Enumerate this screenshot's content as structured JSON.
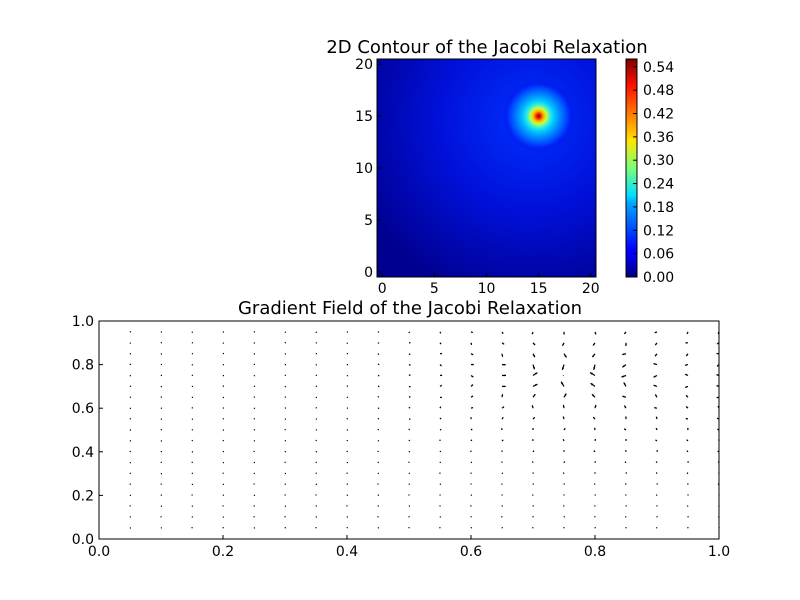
{
  "chart_data": [
    {
      "type": "heatmap",
      "title": "2D Contour of the Jacobi Relaxation",
      "xlabel": "",
      "ylabel": "",
      "xlim": [
        -0.5,
        20.5
      ],
      "ylim": [
        -0.5,
        20.5
      ],
      "xticks": [
        "0",
        "5",
        "10",
        "15",
        "20"
      ],
      "yticks": [
        "0",
        "5",
        "10",
        "15",
        "20"
      ],
      "peak": {
        "x": 15,
        "y": 15,
        "value": 0.56
      },
      "colormap": "jet",
      "colorbar": {
        "range": [
          0.0,
          0.56
        ],
        "ticks": [
          "0.00",
          "0.06",
          "0.12",
          "0.18",
          "0.24",
          "0.30",
          "0.36",
          "0.42",
          "0.48",
          "0.54"
        ]
      }
    },
    {
      "type": "quiver",
      "title": "Gradient Field of the Jacobi Relaxation",
      "xlabel": "",
      "ylabel": "",
      "xlim": [
        0.0,
        1.0
      ],
      "ylim": [
        0.0,
        1.0
      ],
      "xticks": [
        "0.0",
        "0.2",
        "0.4",
        "0.6",
        "0.8",
        "1.0"
      ],
      "yticks": [
        "0.0",
        "0.2",
        "0.4",
        "0.6",
        "0.8",
        "1.0"
      ],
      "grid_x": [
        0,
        0.05,
        0.1,
        0.15,
        0.2,
        0.25,
        0.3,
        0.35,
        0.4,
        0.45,
        0.5,
        0.55,
        0.6,
        0.65,
        0.7,
        0.75,
        0.8,
        0.85,
        0.9,
        0.95,
        1.0
      ],
      "grid_y": [
        0,
        0.05,
        0.1,
        0.15,
        0.2,
        0.25,
        0.3,
        0.35,
        0.4,
        0.45,
        0.5,
        0.55,
        0.6,
        0.65,
        0.7,
        0.75,
        0.8,
        0.85,
        0.9,
        0.95,
        1.0
      ],
      "vectors": "gradient of the relaxation field, large near (0.75, 0.75)"
    }
  ]
}
